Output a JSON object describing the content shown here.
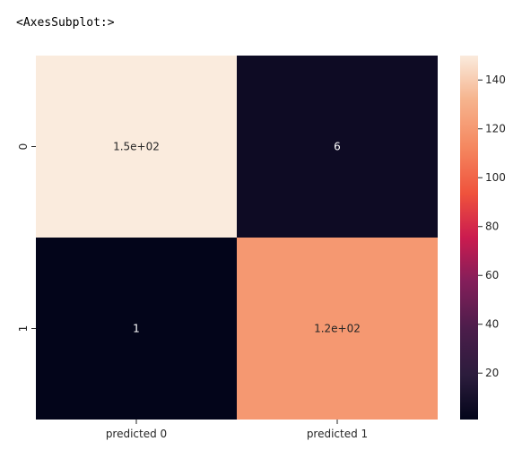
{
  "output": {
    "repr_text": "<AxesSubplot:>"
  },
  "chart_data": {
    "type": "heatmap",
    "title": "",
    "xlabel": "",
    "ylabel": "",
    "x_categories": [
      "predicted 0",
      "predicted 1"
    ],
    "y_categories": [
      "0",
      "1"
    ],
    "values": [
      [
        150,
        6
      ],
      [
        1,
        120
      ]
    ],
    "annotations": [
      [
        "1.5e+02",
        "6"
      ],
      [
        "1",
        "1.2e+02"
      ]
    ],
    "colormap": "rocket",
    "colorbar": {
      "range": [
        1,
        150
      ],
      "ticks": [
        20,
        40,
        60,
        80,
        100,
        120,
        140
      ]
    },
    "grid": false
  }
}
